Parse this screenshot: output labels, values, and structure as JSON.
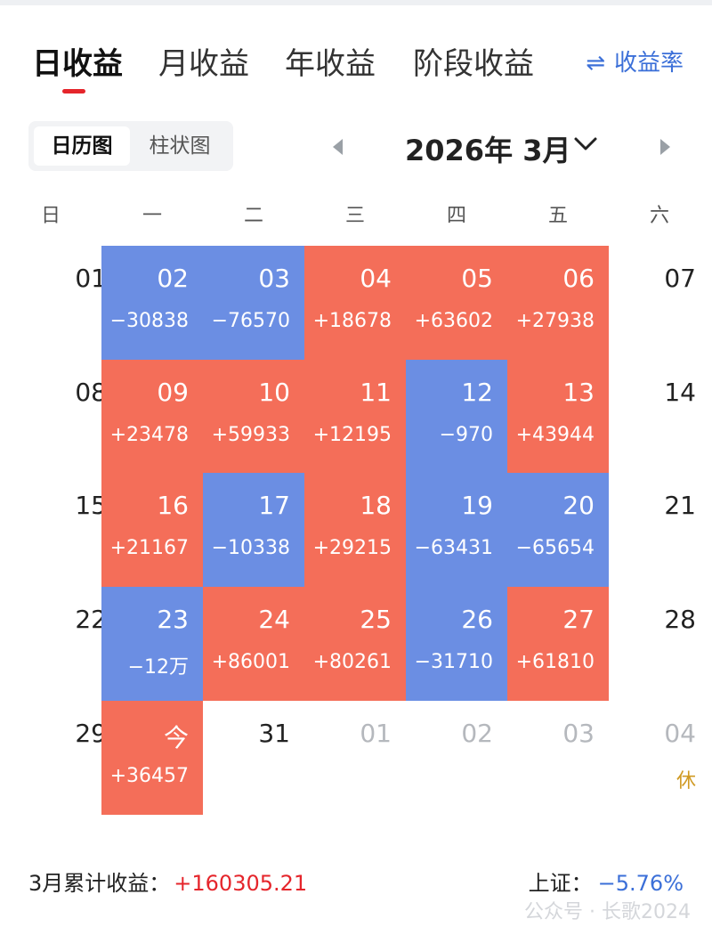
{
  "tabs": [
    {
      "label": "日收益",
      "active": true
    },
    {
      "label": "月收益",
      "active": false
    },
    {
      "label": "年收益",
      "active": false
    },
    {
      "label": "阶段收益",
      "active": false
    }
  ],
  "rate_toggle": {
    "icon": "swap-arrows-icon",
    "label": "收益率"
  },
  "view_toggle": {
    "calendar": "日历图",
    "bar": "柱状图",
    "selected": "日历图"
  },
  "month_nav": {
    "title": "2026年 3月"
  },
  "weekdays": [
    "日",
    "一",
    "二",
    "三",
    "四",
    "五",
    "六"
  ],
  "colors": {
    "gain": "#f46e59",
    "loss": "#6b8ee3",
    "accent_red": "#e5252b",
    "accent_blue": "#3b6fd8"
  },
  "calendar": [
    [
      {
        "day": "01",
        "value": "",
        "type": "plain"
      },
      {
        "day": "02",
        "value": "−30838",
        "type": "neg"
      },
      {
        "day": "03",
        "value": "−76570",
        "type": "neg"
      },
      {
        "day": "04",
        "value": "+18678",
        "type": "pos"
      },
      {
        "day": "05",
        "value": "+63602",
        "type": "pos"
      },
      {
        "day": "06",
        "value": "+27938",
        "type": "pos"
      },
      {
        "day": "07",
        "value": "",
        "type": "plain"
      }
    ],
    [
      {
        "day": "08",
        "value": "",
        "type": "plain"
      },
      {
        "day": "09",
        "value": "+23478",
        "type": "pos"
      },
      {
        "day": "10",
        "value": "+59933",
        "type": "pos"
      },
      {
        "day": "11",
        "value": "+12195",
        "type": "pos"
      },
      {
        "day": "12",
        "value": "−970",
        "type": "neg"
      },
      {
        "day": "13",
        "value": "+43944",
        "type": "pos"
      },
      {
        "day": "14",
        "value": "",
        "type": "plain"
      }
    ],
    [
      {
        "day": "15",
        "value": "",
        "type": "plain"
      },
      {
        "day": "16",
        "value": "+21167",
        "type": "pos"
      },
      {
        "day": "17",
        "value": "−10338",
        "type": "neg"
      },
      {
        "day": "18",
        "value": "+29215",
        "type": "pos"
      },
      {
        "day": "19",
        "value": "−63431",
        "type": "neg"
      },
      {
        "day": "20",
        "value": "−65654",
        "type": "neg"
      },
      {
        "day": "21",
        "value": "",
        "type": "plain"
      }
    ],
    [
      {
        "day": "22",
        "value": "",
        "type": "plain"
      },
      {
        "day": "23",
        "value": "−12万",
        "type": "neg"
      },
      {
        "day": "24",
        "value": "+86001",
        "type": "pos"
      },
      {
        "day": "25",
        "value": "+80261",
        "type": "pos"
      },
      {
        "day": "26",
        "value": "−31710",
        "type": "neg"
      },
      {
        "day": "27",
        "value": "+61810",
        "type": "pos"
      },
      {
        "day": "28",
        "value": "",
        "type": "plain"
      }
    ],
    [
      {
        "day": "29",
        "value": "",
        "type": "plain"
      },
      {
        "day": "今",
        "value": "+36457",
        "type": "pos"
      },
      {
        "day": "31",
        "value": "",
        "type": "plain"
      },
      {
        "day": "01",
        "value": "",
        "type": "muted"
      },
      {
        "day": "02",
        "value": "",
        "type": "muted"
      },
      {
        "day": "03",
        "value": "",
        "type": "muted"
      },
      {
        "day": "04",
        "value": "",
        "type": "muted",
        "note": "休"
      }
    ]
  ],
  "footer": {
    "cumulative_label": "3月累计收益：",
    "cumulative_value": "+160305.21",
    "index_label": "上证：",
    "index_value": "−5.76%"
  },
  "watermark": "公众号 · 长歌2024"
}
